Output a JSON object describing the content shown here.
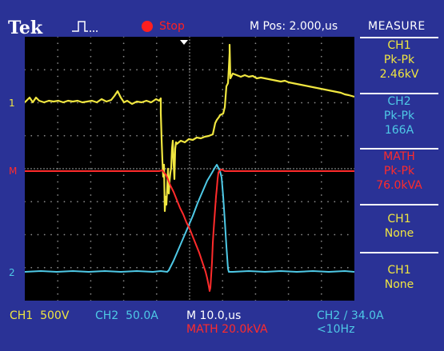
{
  "header": {
    "brand": "Tek",
    "acq_state": "Stop",
    "horizontal_position": "M Pos: 2.000,us"
  },
  "measure": {
    "title": "MEASURE",
    "panels": [
      {
        "source": "CH1",
        "type": "Pk-Pk",
        "value": "2.46kV",
        "color": "#f0e640"
      },
      {
        "source": "CH2",
        "type": "Pk-Pk",
        "value": "166A",
        "color": "#4ec9e6"
      },
      {
        "source": "MATH",
        "type": "Pk-Pk",
        "value": "76.0kVA",
        "color": "#ff2b2b"
      },
      {
        "source": "CH1",
        "type": "None",
        "value": "",
        "color": "#f0e640"
      },
      {
        "source": "CH1",
        "type": "None",
        "value": "",
        "color": "#f0e640"
      }
    ]
  },
  "channels": {
    "ch1_marker": "1",
    "ch2_marker": "2",
    "math_marker": "M",
    "ch1_color": "#f0e640",
    "ch2_color": "#4ec9e6",
    "math_color": "#ff2b2b"
  },
  "footer": {
    "ch1_scale": "CH1  500V",
    "ch2_scale": "CH2  50.0A",
    "timebase": "M 10.0,us",
    "math_scale": "MATH 20.0kVA",
    "trigger": "CH2 / 34.0A",
    "trigger_freq": "<10Hz"
  },
  "icons": {
    "trigger_state": "trigger-pulse-icon",
    "trigger_position": "trigger-position-arrow-icon"
  }
}
